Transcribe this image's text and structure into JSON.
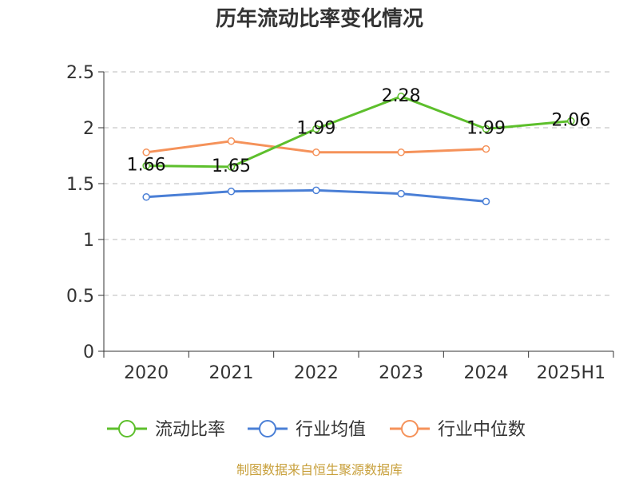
{
  "chart_data": {
    "type": "line",
    "title": "历年流动比率变化情况",
    "categories": [
      "2020",
      "2021",
      "2022",
      "2023",
      "2024",
      "2025H1"
    ],
    "ylim": [
      0,
      2.5
    ],
    "yticks": [
      "0",
      "0.5",
      "1",
      "1.5",
      "2",
      "2.5"
    ],
    "ytick_values": [
      0,
      0.5,
      1,
      1.5,
      2,
      2.5
    ],
    "grid": true,
    "legend_position": "bottom",
    "series": [
      {
        "name": "流动比率",
        "color": "#5dbf2c",
        "values": [
          1.66,
          1.65,
          1.99,
          2.28,
          1.99,
          2.06
        ],
        "labels": [
          "1.66",
          "1.65",
          "1.99",
          "2.28",
          "1.99",
          "2.06"
        ]
      },
      {
        "name": "行业均值",
        "color": "#4a7fd6",
        "values": [
          1.38,
          1.43,
          1.44,
          1.41,
          1.34,
          null
        ],
        "labels": []
      },
      {
        "name": "行业中位数",
        "color": "#f5925a",
        "values": [
          1.78,
          1.88,
          1.78,
          1.78,
          1.81,
          null
        ],
        "labels": []
      }
    ],
    "source": "制图数据来自恒生聚源数据库"
  }
}
